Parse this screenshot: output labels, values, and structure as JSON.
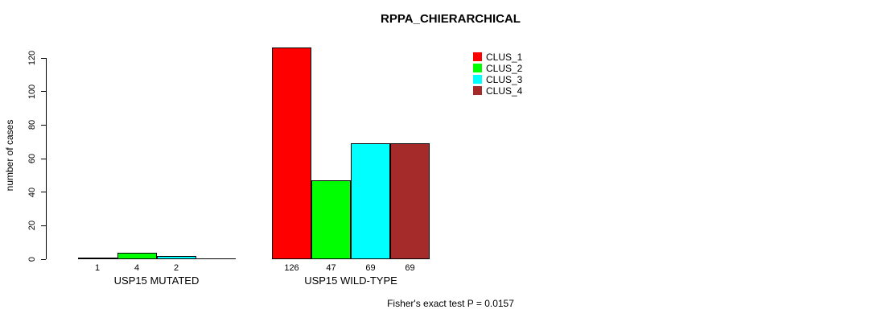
{
  "title": "RPPA_CHIERARCHICAL",
  "ylabel": "number of cases",
  "footer": "Fisher's exact test P = 0.0157",
  "legend": {
    "items": [
      {
        "label": "CLUS_1",
        "color": "#FF0000"
      },
      {
        "label": "CLUS_2",
        "color": "#00FF00"
      },
      {
        "label": "CLUS_3",
        "color": "#00FFFF"
      },
      {
        "label": "CLUS_4",
        "color": "#A52A2A"
      }
    ]
  },
  "chart_data": {
    "type": "bar",
    "title": "RPPA_CHIERARCHICAL",
    "xlabel": "",
    "ylabel": "number of cases",
    "ylim": [
      0,
      120
    ],
    "yticks": [
      0,
      20,
      40,
      60,
      80,
      100,
      120
    ],
    "grid": false,
    "legend_position": "top-right",
    "categories": [
      "USP15 MUTATED",
      "USP15 WILD-TYPE"
    ],
    "series": [
      {
        "name": "CLUS_1",
        "color": "#FF0000",
        "values": [
          1,
          126
        ]
      },
      {
        "name": "CLUS_2",
        "color": "#00FF00",
        "values": [
          4,
          47
        ]
      },
      {
        "name": "CLUS_3",
        "color": "#00FFFF",
        "values": [
          2,
          69
        ]
      },
      {
        "name": "CLUS_4",
        "color": "#A52A2A",
        "values": [
          0,
          69
        ]
      }
    ],
    "bar_labels": [
      [
        "1",
        "4",
        "2",
        ""
      ],
      [
        "126",
        "47",
        "69",
        "69"
      ]
    ],
    "annotation": "Fisher's exact test P = 0.0157"
  }
}
